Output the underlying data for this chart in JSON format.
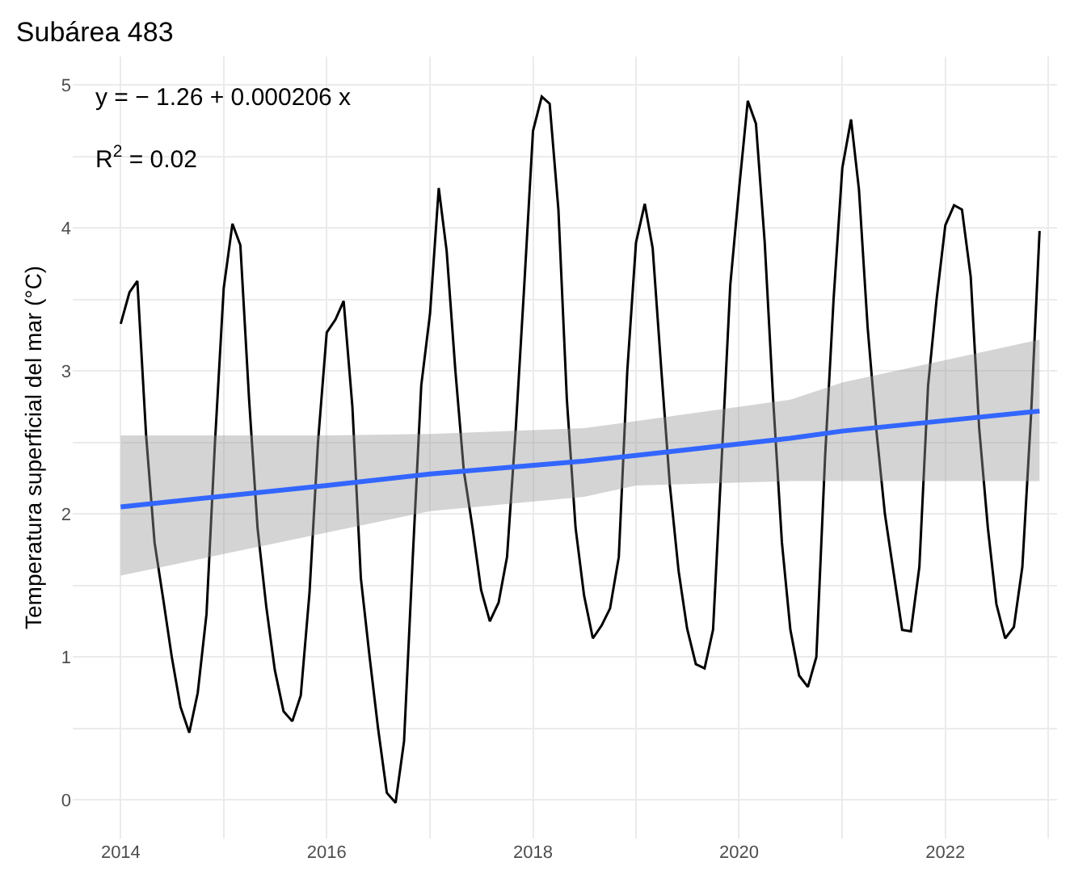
{
  "chart_data": {
    "type": "line",
    "title": "Subárea 483",
    "ylabel": "Temperatura superficial del mar (°C)",
    "annotations": [
      "y = − 1.26 + 0.000206 x",
      "R$^{2}$ = 0.02"
    ],
    "x": [
      "2014-01",
      "2014-02",
      "2014-03",
      "2014-04",
      "2014-05",
      "2014-06",
      "2014-07",
      "2014-08",
      "2014-09",
      "2014-10",
      "2014-11",
      "2014-12",
      "2015-01",
      "2015-02",
      "2015-03",
      "2015-04",
      "2015-05",
      "2015-06",
      "2015-07",
      "2015-08",
      "2015-09",
      "2015-10",
      "2015-11",
      "2015-12",
      "2016-01",
      "2016-02",
      "2016-03",
      "2016-04",
      "2016-05",
      "2016-06",
      "2016-07",
      "2016-08",
      "2016-09",
      "2016-10",
      "2016-11",
      "2016-12",
      "2017-01",
      "2017-02",
      "2017-03",
      "2017-04",
      "2017-05",
      "2017-06",
      "2017-07",
      "2017-08",
      "2017-09",
      "2017-10",
      "2017-11",
      "2017-12",
      "2018-01",
      "2018-02",
      "2018-03",
      "2018-04",
      "2018-05",
      "2018-06",
      "2018-07",
      "2018-08",
      "2018-09",
      "2018-10",
      "2018-11",
      "2018-12",
      "2019-01",
      "2019-02",
      "2019-03",
      "2019-04",
      "2019-05",
      "2019-06",
      "2019-07",
      "2019-08",
      "2019-09",
      "2019-10",
      "2019-11",
      "2019-12",
      "2020-01",
      "2020-02",
      "2020-03",
      "2020-04",
      "2020-05",
      "2020-06",
      "2020-07",
      "2020-08",
      "2020-09",
      "2020-10",
      "2020-11",
      "2020-12",
      "2021-01",
      "2021-02",
      "2021-03",
      "2021-04",
      "2021-05",
      "2021-06",
      "2021-07",
      "2021-08",
      "2021-09",
      "2021-10",
      "2021-11",
      "2021-12",
      "2022-01",
      "2022-02",
      "2022-03",
      "2022-04",
      "2022-05",
      "2022-06",
      "2022-07",
      "2022-08",
      "2022-09",
      "2022-10",
      "2022-11",
      "2022-12"
    ],
    "series": [
      {
        "color": "#000000",
        "values": [
          3.33,
          3.55,
          3.63,
          2.55,
          1.8,
          1.4,
          1.0,
          0.65,
          0.47,
          0.75,
          1.3,
          2.5,
          3.58,
          4.03,
          3.88,
          2.8,
          1.9,
          1.35,
          0.91,
          0.62,
          0.55,
          0.73,
          1.45,
          2.5,
          3.27,
          3.36,
          3.49,
          2.75,
          1.55,
          1.0,
          0.5,
          0.05,
          -0.02,
          0.41,
          1.7,
          2.9,
          3.4,
          4.28,
          3.84,
          3.0,
          2.3,
          1.9,
          1.47,
          1.25,
          1.38,
          1.7,
          2.6,
          3.6,
          4.68,
          4.92,
          4.87,
          4.13,
          2.8,
          1.9,
          1.43,
          1.13,
          1.22,
          1.34,
          1.7,
          3.0,
          3.9,
          4.17,
          3.86,
          3.0,
          2.2,
          1.6,
          1.2,
          0.95,
          0.92,
          1.19,
          2.4,
          3.6,
          4.27,
          4.89,
          4.73,
          3.9,
          2.8,
          1.8,
          1.19,
          0.87,
          0.79,
          1.0,
          2.4,
          3.5,
          4.42,
          4.76,
          4.27,
          3.3,
          2.6,
          2.0,
          1.6,
          1.19,
          1.18,
          1.63,
          2.9,
          3.5,
          4.02,
          4.16,
          4.13,
          3.66,
          2.6,
          1.9,
          1.37,
          1.13,
          1.21,
          1.63,
          2.7,
          3.98
        ]
      },
      {
        "color": "#3366ff",
        "x": [
          "2014-01",
          "2016-01",
          "2017-01",
          "2018-07",
          "2019-01",
          "2020-07",
          "2021-01",
          "2022-12"
        ],
        "values": [
          2.05,
          2.2,
          2.28,
          2.37,
          2.41,
          2.53,
          2.58,
          2.72
        ],
        "lower": [
          1.57,
          1.87,
          2.02,
          2.12,
          2.2,
          2.23,
          2.23,
          2.23
        ],
        "upper": [
          2.55,
          2.55,
          2.56,
          2.6,
          2.65,
          2.8,
          2.92,
          3.22
        ]
      }
    ],
    "xlim": [
      "2013-07-15",
      "2023-02-01"
    ],
    "xticks": [
      {
        "value": "2014",
        "label": "2014"
      },
      {
        "value": "2015",
        "label": null
      },
      {
        "value": "2016",
        "label": "2016"
      },
      {
        "value": "2017",
        "label": null
      },
      {
        "value": "2018",
        "label": "2018"
      },
      {
        "value": "2019",
        "label": null
      },
      {
        "value": "2020",
        "label": "2020"
      },
      {
        "value": "2021",
        "label": null
      },
      {
        "value": "2022",
        "label": "2022"
      },
      {
        "value": "2023",
        "label": null
      }
    ],
    "ylim": [
      -0.27,
      5.2
    ],
    "yticks": [
      0,
      {
        "value": 0.5,
        "label": null
      },
      1,
      {
        "value": 1.5,
        "label": null
      },
      2,
      {
        "value": 2.5,
        "label": null
      },
      3,
      {
        "value": 3.5,
        "label": null
      },
      4,
      {
        "value": 4.5,
        "label": null
      },
      5
    ],
    "grid": true,
    "marker": "none",
    "line_style": "solid"
  }
}
